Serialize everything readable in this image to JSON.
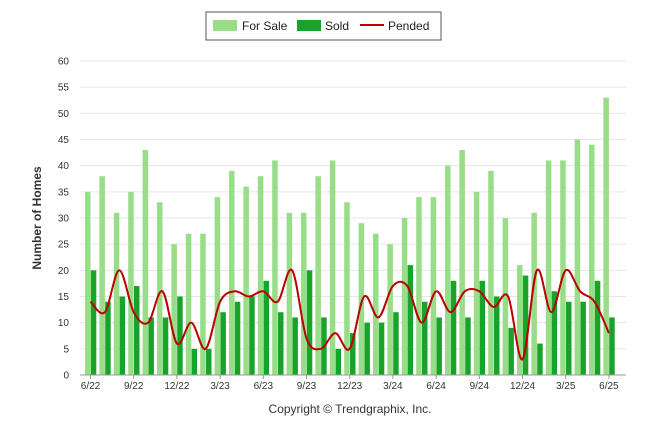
{
  "chart_data": {
    "type": "bar",
    "ylabel": "Number of Homes",
    "ylim": [
      0,
      60
    ],
    "yticks": [
      "0",
      "5",
      "10",
      "15",
      "20",
      "25",
      "30",
      "35",
      "40",
      "45",
      "50",
      "55",
      "60"
    ],
    "xtick_labels": [
      {
        "index": 0,
        "label": "6/22"
      },
      {
        "index": 3,
        "label": "9/22"
      },
      {
        "index": 6,
        "label": "12/22"
      },
      {
        "index": 9,
        "label": "3/23"
      },
      {
        "index": 12,
        "label": "6/23"
      },
      {
        "index": 15,
        "label": "9/23"
      },
      {
        "index": 18,
        "label": "12/23"
      },
      {
        "index": 21,
        "label": "3/24"
      },
      {
        "index": 24,
        "label": "6/24"
      },
      {
        "index": 27,
        "label": "9/24"
      },
      {
        "index": 30,
        "label": "12/24"
      },
      {
        "index": 33,
        "label": "3/25"
      },
      {
        "index": 36,
        "label": "6/25"
      }
    ],
    "grid": true,
    "legend_position": "top-center",
    "series": [
      {
        "name": "For Sale",
        "kind": "bar",
        "color": "#99dd88",
        "values": [
          35,
          38,
          31,
          35,
          43,
          33,
          25,
          27,
          27,
          34,
          39,
          36,
          38,
          41,
          31,
          31,
          38,
          41,
          33,
          29,
          27,
          25,
          30,
          34,
          34,
          40,
          43,
          35,
          39,
          30,
          21,
          31,
          41,
          41,
          45,
          44,
          53
        ]
      },
      {
        "name": "Sold",
        "kind": "bar",
        "color": "#1aa32a",
        "values": [
          20,
          14,
          15,
          17,
          11,
          11,
          15,
          5,
          5,
          12,
          14,
          15,
          18,
          12,
          11,
          20,
          11,
          5,
          8,
          10,
          10,
          12,
          21,
          14,
          11,
          18,
          11,
          18,
          15,
          9,
          19,
          6,
          16,
          14,
          14,
          18,
          11
        ]
      },
      {
        "name": "Pended",
        "kind": "line",
        "color": "#bb0000",
        "values": [
          14,
          12,
          20,
          12,
          10,
          16,
          6,
          10,
          5,
          14,
          16,
          15,
          16,
          14,
          20,
          7,
          5,
          8,
          5,
          15,
          11,
          17,
          17,
          10,
          16,
          12,
          16,
          16,
          13,
          15,
          3,
          20,
          12,
          20,
          16,
          14,
          8
        ]
      }
    ]
  },
  "footer": {
    "copyright": "Copyright © Trendgraphix, Inc."
  }
}
